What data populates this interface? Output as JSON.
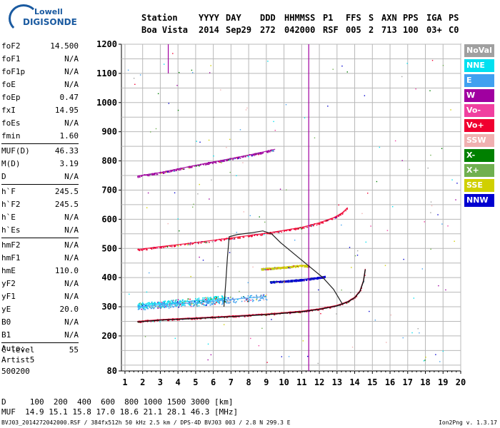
{
  "logo": {
    "line1": "Lowell",
    "line2": "DIGISONDE"
  },
  "header": {
    "row1": [
      "Station",
      "YYYY",
      "DAY",
      "DDD",
      "HHMMSS",
      "P1",
      "FFS",
      "S",
      "AXN",
      "PPS",
      "IGA",
      "PS"
    ],
    "row2": [
      "Boa Vista",
      "2014",
      "Sep29",
      "272",
      "042000",
      "RSF",
      "005",
      "2",
      "713",
      "100",
      "03+",
      "C0"
    ]
  },
  "params": [
    [
      [
        "foF2",
        "14.500"
      ],
      [
        "foF1",
        "N/A"
      ],
      [
        "foF1p",
        "N/A"
      ],
      [
        "foE",
        "N/A"
      ],
      [
        "foEp",
        "0.47"
      ],
      [
        "fxI",
        "14.95"
      ],
      [
        "foEs",
        "N/A"
      ],
      [
        "fmin",
        "1.60"
      ]
    ],
    [
      [
        "MUF(D)",
        "46.33"
      ],
      [
        "M(D)",
        "3.19"
      ],
      [
        "D",
        "N/A"
      ]
    ],
    [
      [
        "h`F",
        "245.5"
      ],
      [
        "h`F2",
        "245.5"
      ],
      [
        "h`E",
        "N/A"
      ],
      [
        "h`Es",
        "N/A"
      ]
    ],
    [
      [
        "hmF2",
        "N/A"
      ],
      [
        "hmF1",
        "N/A"
      ],
      [
        "hmE",
        "110.0"
      ],
      [
        "yF2",
        "N/A"
      ],
      [
        "yF1",
        "N/A"
      ],
      [
        "yE",
        "20.0"
      ],
      [
        "B0",
        "N/A"
      ],
      [
        "B1",
        "N/A"
      ]
    ],
    [
      [
        "C-level",
        "55"
      ]
    ]
  ],
  "auto": {
    "line1": "Auto:",
    "line2": "Artist5",
    "line3": "500200"
  },
  "bottom": {
    "d_line": "D     100  200  400  600  800 1000 1500 3000 [km]",
    "muf_line": "MUF  14.9 15.1 15.8 17.0 18.6 21.1 28.1 46.3 [MHz]"
  },
  "footer": {
    "left": "BVJ03_2014272042000.RSF / 384fx512h 50 kHz 2.5 km / DPS-4D BVJ03 003 / 2.8 N 299.3 E",
    "right": "Ion2Png v. 1.3.17"
  },
  "legend": [
    {
      "label": "NoVal",
      "color": "#a0a0a0"
    },
    {
      "label": "NNE",
      "color": "#00e0f0"
    },
    {
      "label": "E",
      "color": "#40a0f0"
    },
    {
      "label": "W",
      "color": "#a000a0"
    },
    {
      "label": "Vo-",
      "color": "#f040a0"
    },
    {
      "label": "Vo+",
      "color": "#f00030"
    },
    {
      "label": "SSW",
      "color": "#f0b0b0"
    },
    {
      "label": "X-",
      "color": "#008000"
    },
    {
      "label": "X+",
      "color": "#70b050"
    },
    {
      "label": "SSE",
      "color": "#d0d000"
    },
    {
      "label": "NNW",
      "color": "#0000d0"
    }
  ],
  "chart_data": {
    "type": "scatter",
    "xlim": [
      0.8,
      20
    ],
    "ylim": [
      80,
      1200
    ],
    "x_ticks": [
      1,
      2,
      3,
      4,
      5,
      6,
      7,
      8,
      9,
      10,
      11,
      12,
      13,
      14,
      15,
      16,
      17,
      18,
      19,
      20
    ],
    "y_ticks": [
      80,
      200,
      300,
      400,
      500,
      600,
      700,
      800,
      900,
      1000,
      1100,
      1200
    ],
    "grid": true,
    "traces": [
      {
        "name": "F trace",
        "color": "#f00030",
        "points": [
          [
            1.7,
            250
          ],
          [
            3,
            256
          ],
          [
            5,
            262
          ],
          [
            7,
            268
          ],
          [
            9,
            275
          ],
          [
            11,
            285
          ],
          [
            12,
            293
          ],
          [
            13,
            305
          ],
          [
            13.6,
            318
          ],
          [
            14,
            333
          ],
          [
            14.3,
            355
          ],
          [
            14.5,
            390
          ],
          [
            14.6,
            430
          ]
        ]
      },
      {
        "name": "2F trace",
        "color": "#f00030",
        "points": [
          [
            1.7,
            496
          ],
          [
            3,
            506
          ],
          [
            5,
            520
          ],
          [
            7,
            536
          ],
          [
            9,
            552
          ],
          [
            11,
            572
          ],
          [
            12,
            588
          ],
          [
            12.8,
            605
          ],
          [
            13.3,
            622
          ],
          [
            13.6,
            640
          ]
        ]
      },
      {
        "name": "3F trace",
        "color": "#a000a0",
        "points": [
          [
            1.7,
            748
          ],
          [
            3,
            760
          ],
          [
            5,
            785
          ],
          [
            7,
            808
          ],
          [
            8.5,
            826
          ],
          [
            9.5,
            840
          ]
        ]
      },
      {
        "name": "NNE spread",
        "color": "#00e0f0",
        "points": [
          [
            1.7,
            305
          ],
          [
            3,
            310
          ],
          [
            4.5,
            318
          ],
          [
            6,
            325
          ],
          [
            6.7,
            330
          ]
        ]
      },
      {
        "name": "E spread",
        "color": "#40a0f0",
        "points": [
          [
            1.7,
            300
          ],
          [
            3,
            306
          ],
          [
            5,
            314
          ],
          [
            6.6,
            322
          ],
          [
            7.5,
            328
          ],
          [
            9,
            335
          ]
        ]
      },
      {
        "name": "NNW trace",
        "color": "#0000d0",
        "points": [
          [
            9.2,
            385
          ],
          [
            10,
            388
          ],
          [
            10.8,
            392
          ],
          [
            11.4,
            396
          ],
          [
            11.9,
            400
          ],
          [
            12.3,
            404
          ]
        ]
      },
      {
        "name": "SSE trace",
        "color": "#d0d000",
        "points": [
          [
            8.7,
            430
          ],
          [
            9.4,
            433
          ],
          [
            10.2,
            437
          ],
          [
            11,
            442
          ],
          [
            11.4,
            440
          ]
        ]
      }
    ],
    "profile": {
      "name": "electron density profile",
      "color": "#202020",
      "points": [
        [
          6.6,
          300
        ],
        [
          6.7,
          380
        ],
        [
          6.8,
          470
        ],
        [
          6.9,
          540
        ],
        [
          7.4,
          548
        ],
        [
          8.2,
          554
        ],
        [
          8.8,
          560
        ],
        [
          9.3,
          550
        ],
        [
          9.8,
          520
        ],
        [
          10.6,
          480
        ],
        [
          11.4,
          440
        ],
        [
          12.2,
          400
        ],
        [
          12.8,
          360
        ],
        [
          13.1,
          330
        ],
        [
          13.3,
          310
        ]
      ]
    },
    "vertical_marks": [
      {
        "x": 11.4,
        "y0": 80,
        "y1": 1200,
        "color": "#a000a0"
      },
      {
        "x": 3.45,
        "y0": 1100,
        "y1": 1200,
        "color": "#a000a0"
      }
    ]
  }
}
